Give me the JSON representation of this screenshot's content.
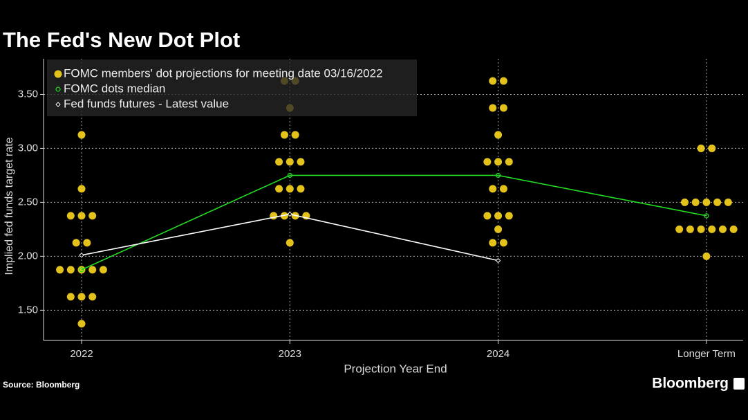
{
  "chart_data": {
    "type": "dot",
    "title": "The Fed's New Dot Plot",
    "x_label": "Projection Year End",
    "y_label": "Implied fed funds target rate",
    "categories": [
      "2022",
      "2023",
      "2024",
      "Longer Term"
    ],
    "ylim": [
      1.22,
      3.83
    ],
    "yticks": [
      {
        "value": 1.5,
        "label": "1.50"
      },
      {
        "value": 2,
        "label": "2.00"
      },
      {
        "value": 2.5,
        "label": "2.50"
      },
      {
        "value": 3,
        "label": "3.00"
      },
      {
        "value": 3.5,
        "label": "3.50"
      }
    ],
    "grid": true,
    "legend": "top-left",
    "series": [
      {
        "name": "FOMC members' dot projections for meeting date 03/16/2022",
        "color": "#e3c21c",
        "kind": "dots",
        "values": [
          [
            3.125,
            2.625,
            2.375,
            2.375,
            2.375,
            2.125,
            2.125,
            1.875,
            1.875,
            1.875,
            1.875,
            1.875,
            1.625,
            1.625,
            1.625,
            1.375
          ],
          [
            3.625,
            3.625,
            3.375,
            3.125,
            3.125,
            2.875,
            2.875,
            2.875,
            2.625,
            2.625,
            2.625,
            2.375,
            2.375,
            2.375,
            2.375,
            2.125
          ],
          [
            3.625,
            3.625,
            3.375,
            3.375,
            3.125,
            2.875,
            2.875,
            2.875,
            2.625,
            2.625,
            2.375,
            2.375,
            2.375,
            2.25,
            2.125,
            2.125
          ],
          [
            3.0,
            3.0,
            2.5,
            2.5,
            2.5,
            2.5,
            2.5,
            2.25,
            2.25,
            2.25,
            2.25,
            2.25,
            2.25,
            2.0
          ]
        ]
      },
      {
        "name": "FOMC dots median",
        "color": "#22dd22",
        "kind": "median",
        "values": [
          1.875,
          2.75,
          2.75,
          2.375
        ]
      },
      {
        "name": "Fed funds futures - Latest value",
        "color": "#ffffff",
        "kind": "futures",
        "values": [
          2.01,
          2.39,
          1.96,
          null
        ]
      }
    ],
    "source": "Source: Bloomberg",
    "logo": "Bloomberg"
  }
}
